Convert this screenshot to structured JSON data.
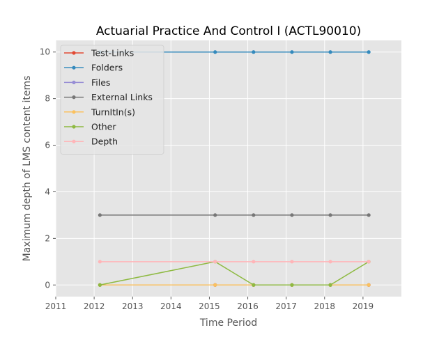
{
  "chart_data": {
    "type": "line",
    "title": "Actuarial Practice And Control I (ACTL90010)",
    "xlabel": "Time Period",
    "ylabel": "Maximum depth of LMS content items",
    "xlim": [
      2011,
      2020
    ],
    "ylim": [
      -0.5,
      10.5
    ],
    "xticks": [
      2011,
      2012,
      2013,
      2014,
      2015,
      2016,
      2017,
      2018,
      2019
    ],
    "yticks": [
      0,
      2,
      4,
      6,
      8,
      10
    ],
    "grid": true,
    "legend": "top-left",
    "series": [
      {
        "name": "Test-Links",
        "color": "#E24A33",
        "x": [
          2012.15,
          2015.15,
          2016.15,
          2017.15,
          2018.15,
          2019.15
        ],
        "y": [
          0,
          0,
          0,
          0,
          0,
          0
        ]
      },
      {
        "name": "Folders",
        "color": "#348ABD",
        "x": [
          2012.15,
          2015.15,
          2016.15,
          2017.15,
          2018.15,
          2019.15
        ],
        "y": [
          10,
          10,
          10,
          10,
          10,
          10
        ]
      },
      {
        "name": "Files",
        "color": "#988ED5",
        "x": [
          2012.15,
          2015.15,
          2016.15,
          2017.15,
          2018.15,
          2019.15
        ],
        "y": [
          0,
          0,
          0,
          0,
          0,
          0
        ]
      },
      {
        "name": "External Links",
        "color": "#777777",
        "x": [
          2012.15,
          2015.15,
          2016.15,
          2017.15,
          2018.15,
          2019.15
        ],
        "y": [
          3,
          3,
          3,
          3,
          3,
          3
        ]
      },
      {
        "name": "TurnItIn(s)",
        "color": "#FBC15E",
        "x": [
          2012.15,
          2015.15,
          2016.15,
          2017.15,
          2018.15,
          2019.15
        ],
        "y": [
          0,
          0,
          0,
          0,
          0,
          0
        ]
      },
      {
        "name": "Other",
        "color": "#8EBA42",
        "x": [
          2012.15,
          2015.15,
          2016.15,
          2017.15,
          2018.15,
          2019.15
        ],
        "y": [
          0,
          1,
          0,
          0,
          0,
          1
        ]
      },
      {
        "name": "Depth",
        "color": "#FFB5B8",
        "x": [
          2012.15,
          2015.15,
          2016.15,
          2017.15,
          2018.15,
          2019.15
        ],
        "y": [
          1,
          1,
          1,
          1,
          1,
          1
        ]
      }
    ]
  }
}
